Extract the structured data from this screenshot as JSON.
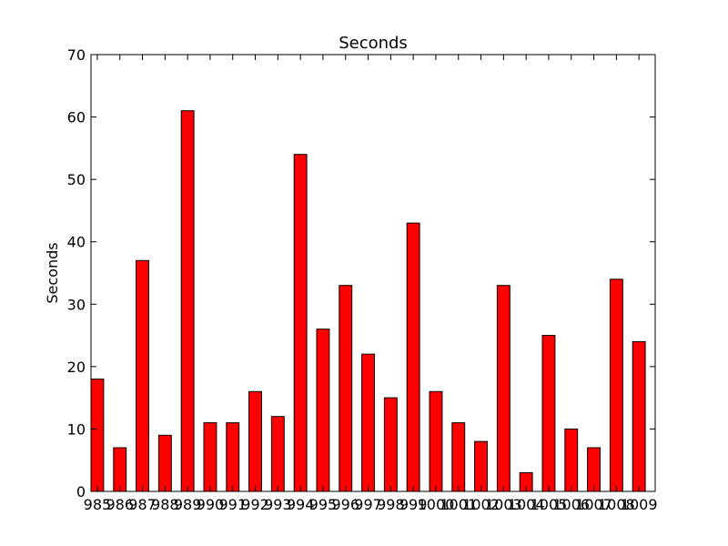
{
  "chart_data": {
    "type": "bar",
    "title": "Seconds",
    "xlabel": "",
    "ylabel": "Seconds",
    "categories": [
      "985",
      "986",
      "987",
      "988",
      "989",
      "990",
      "991",
      "992",
      "993",
      "994",
      "995",
      "996",
      "997",
      "998",
      "999",
      "1000",
      "1001",
      "1002",
      "1003",
      "1004",
      "1005",
      "1006",
      "1007",
      "1008",
      "1009"
    ],
    "values": [
      18,
      7,
      37,
      9,
      61,
      11,
      11,
      16,
      12,
      54,
      26,
      33,
      22,
      15,
      43,
      16,
      11,
      8,
      33,
      3,
      25,
      10,
      7,
      34,
      24
    ],
    "ylim": [
      0,
      70
    ],
    "yticks": [
      0,
      10,
      20,
      30,
      40,
      50,
      60,
      70
    ],
    "bar_color": "#ff0000",
    "edge_color": "#000000",
    "grid": false,
    "legend": "none"
  }
}
